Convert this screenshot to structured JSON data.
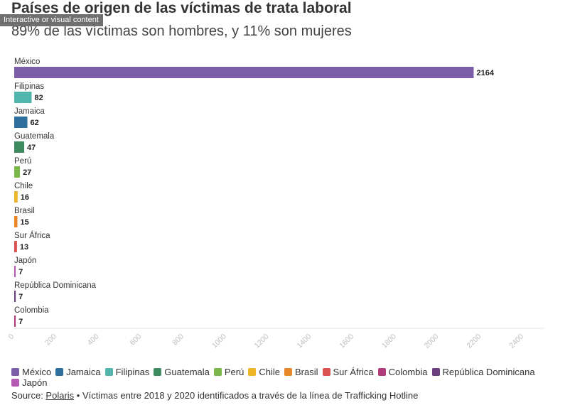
{
  "header": {
    "title": "Países de origen de las víctimas de trata laboral",
    "subtitle": "89% de las víctimas son hombres, y 11% son mujeres",
    "overlay_badge": "Interactive or visual content"
  },
  "chart_data": {
    "type": "bar",
    "orientation": "horizontal",
    "categories": [
      "México",
      "Filipinas",
      "Jamaica",
      "Guatemala",
      "Perú",
      "Chile",
      "Brasil",
      "Sur África",
      "Japón",
      "República Dominicana",
      "Colombia"
    ],
    "values": [
      2164,
      82,
      62,
      47,
      27,
      16,
      15,
      13,
      7,
      7,
      7
    ],
    "colors": [
      "#7b5ea7",
      "#4fb5ad",
      "#2e6f9e",
      "#3d8a5f",
      "#7ab648",
      "#f0b429",
      "#e8862a",
      "#d9534f",
      "#b35bb3",
      "#6b3e7d",
      "#b03a7a"
    ],
    "xlim": [
      0,
      2400
    ],
    "xticks": [
      0,
      200,
      400,
      600,
      800,
      1000,
      1200,
      1400,
      1600,
      1800,
      2000,
      2200,
      2400
    ],
    "grid": false
  },
  "legend": {
    "items": [
      {
        "label": "México",
        "color": "#7b5ea7"
      },
      {
        "label": "Jamaica",
        "color": "#2e6f9e"
      },
      {
        "label": "Filipinas",
        "color": "#4fb5ad"
      },
      {
        "label": "Guatemala",
        "color": "#3d8a5f"
      },
      {
        "label": "Perú",
        "color": "#7ab648"
      },
      {
        "label": "Chile",
        "color": "#f0b429"
      },
      {
        "label": "Brasil",
        "color": "#e8862a"
      },
      {
        "label": "Sur África",
        "color": "#d9534f"
      },
      {
        "label": "Colombia",
        "color": "#b03a7a"
      },
      {
        "label": "República Dominicana",
        "color": "#6b3e7d"
      },
      {
        "label": "Japón",
        "color": "#b35bb3"
      }
    ]
  },
  "footer": {
    "source_prefix": "Source: ",
    "source_link": "Polaris",
    "source_rest": " • Víctimas entre 2018 y 2020 identificados a través de la línea de Trafficking Hotline"
  }
}
